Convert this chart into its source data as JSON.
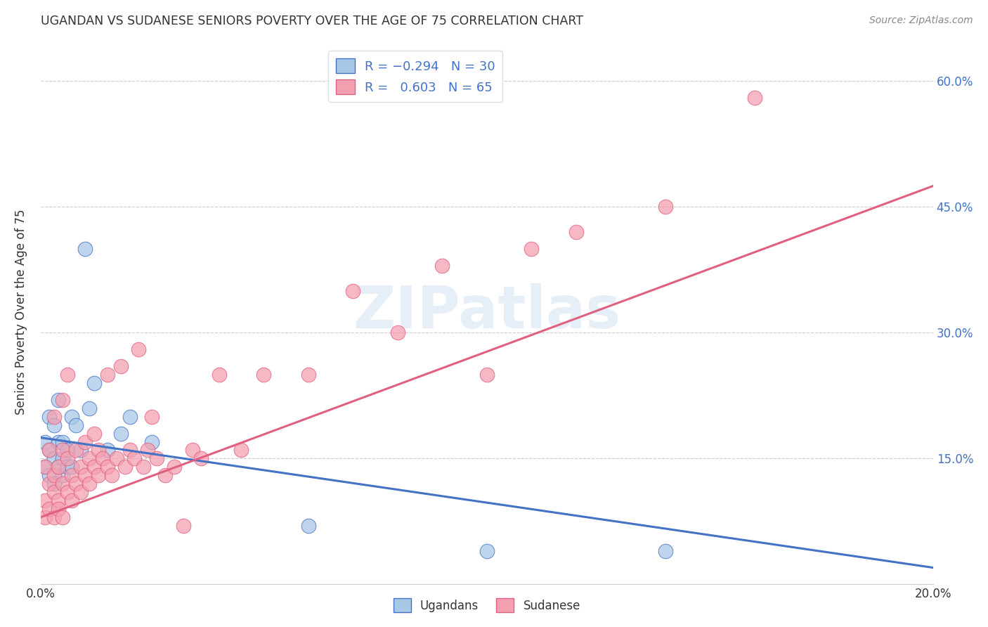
{
  "title": "UGANDAN VS SUDANESE SENIORS POVERTY OVER THE AGE OF 75 CORRELATION CHART",
  "source": "Source: ZipAtlas.com",
  "ylabel": "Seniors Poverty Over the Age of 75",
  "watermark": "ZIPatlas",
  "ugandan_R": -0.294,
  "ugandan_N": 30,
  "sudanese_R": 0.603,
  "sudanese_N": 65,
  "xlim": [
    0.0,
    0.2
  ],
  "ylim": [
    0.0,
    0.65
  ],
  "ugandan_color": "#a8c8e8",
  "ugandan_color_line": "#4472c4",
  "sudanese_color": "#f4a0b0",
  "sudanese_color_line": "#e06080",
  "background_color": "#ffffff",
  "grid_color": "#cccccc",
  "legend_text_color": "#4472c4",
  "ugandan_x": [
    0.001,
    0.001,
    0.002,
    0.002,
    0.002,
    0.003,
    0.003,
    0.003,
    0.004,
    0.004,
    0.004,
    0.005,
    0.005,
    0.005,
    0.006,
    0.006,
    0.007,
    0.007,
    0.008,
    0.009,
    0.01,
    0.011,
    0.012,
    0.015,
    0.018,
    0.02,
    0.025,
    0.06,
    0.1,
    0.14
  ],
  "ugandan_y": [
    0.17,
    0.14,
    0.16,
    0.13,
    0.2,
    0.15,
    0.12,
    0.19,
    0.14,
    0.17,
    0.22,
    0.15,
    0.13,
    0.17,
    0.14,
    0.16,
    0.2,
    0.14,
    0.19,
    0.16,
    0.4,
    0.21,
    0.24,
    0.16,
    0.18,
    0.2,
    0.17,
    0.07,
    0.04,
    0.04
  ],
  "sudanese_x": [
    0.001,
    0.001,
    0.001,
    0.002,
    0.002,
    0.002,
    0.003,
    0.003,
    0.003,
    0.003,
    0.004,
    0.004,
    0.004,
    0.005,
    0.005,
    0.005,
    0.005,
    0.006,
    0.006,
    0.006,
    0.007,
    0.007,
    0.008,
    0.008,
    0.009,
    0.009,
    0.01,
    0.01,
    0.011,
    0.011,
    0.012,
    0.012,
    0.013,
    0.013,
    0.014,
    0.015,
    0.015,
    0.016,
    0.017,
    0.018,
    0.019,
    0.02,
    0.021,
    0.022,
    0.023,
    0.024,
    0.025,
    0.026,
    0.028,
    0.03,
    0.032,
    0.034,
    0.036,
    0.04,
    0.045,
    0.05,
    0.06,
    0.07,
    0.08,
    0.09,
    0.1,
    0.11,
    0.12,
    0.14,
    0.16
  ],
  "sudanese_y": [
    0.1,
    0.14,
    0.08,
    0.12,
    0.09,
    0.16,
    0.11,
    0.13,
    0.08,
    0.2,
    0.1,
    0.14,
    0.09,
    0.12,
    0.16,
    0.08,
    0.22,
    0.11,
    0.15,
    0.25,
    0.1,
    0.13,
    0.12,
    0.16,
    0.11,
    0.14,
    0.13,
    0.17,
    0.12,
    0.15,
    0.14,
    0.18,
    0.13,
    0.16,
    0.15,
    0.25,
    0.14,
    0.13,
    0.15,
    0.26,
    0.14,
    0.16,
    0.15,
    0.28,
    0.14,
    0.16,
    0.2,
    0.15,
    0.13,
    0.14,
    0.07,
    0.16,
    0.15,
    0.25,
    0.16,
    0.25,
    0.25,
    0.35,
    0.3,
    0.38,
    0.25,
    0.4,
    0.42,
    0.45,
    0.58
  ],
  "ugandan_line_x": [
    0.0,
    0.2
  ],
  "ugandan_line_y": [
    0.175,
    0.02
  ],
  "sudanese_line_x": [
    0.0,
    0.2
  ],
  "sudanese_line_y": [
    0.08,
    0.475
  ]
}
